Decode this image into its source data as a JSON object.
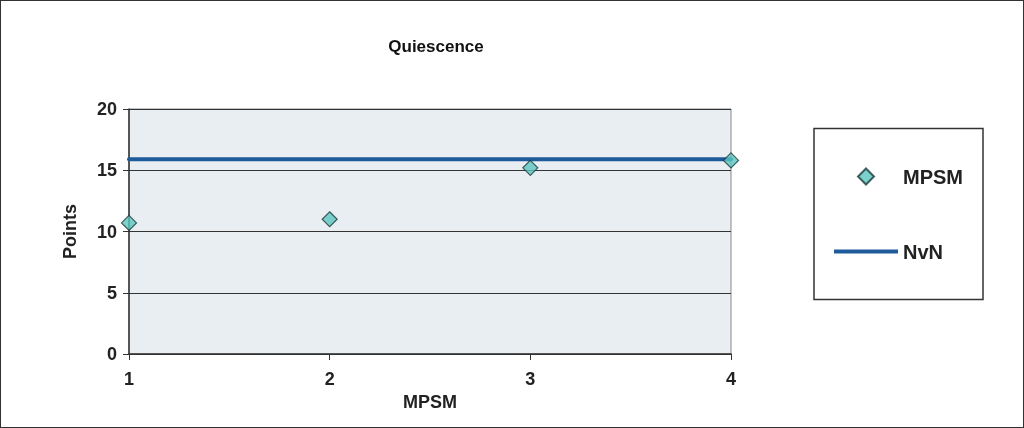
{
  "chart_data": {
    "type": "scatter",
    "title": "Quiescence",
    "xlabel": "MPSM",
    "ylabel": "Points",
    "x": [
      1,
      2,
      3,
      4
    ],
    "series": [
      {
        "name": "MPSM",
        "color": "#5cc6c0",
        "marker": "diamond",
        "values": [
          10.7,
          11.0,
          15.2,
          15.8
        ]
      },
      {
        "name": "NvN",
        "type": "line",
        "color": "#1f5a9a",
        "marker": "none",
        "line_style": "solid",
        "x": [
          1,
          4
        ],
        "values": [
          15.9,
          15.9
        ]
      }
    ],
    "xlim": [
      1,
      4
    ],
    "xticks": [
      1,
      2,
      3,
      4
    ],
    "ylim": [
      0,
      20
    ],
    "yticks": [
      0,
      5,
      10,
      15,
      20
    ],
    "grid": "y",
    "legend": "right"
  }
}
